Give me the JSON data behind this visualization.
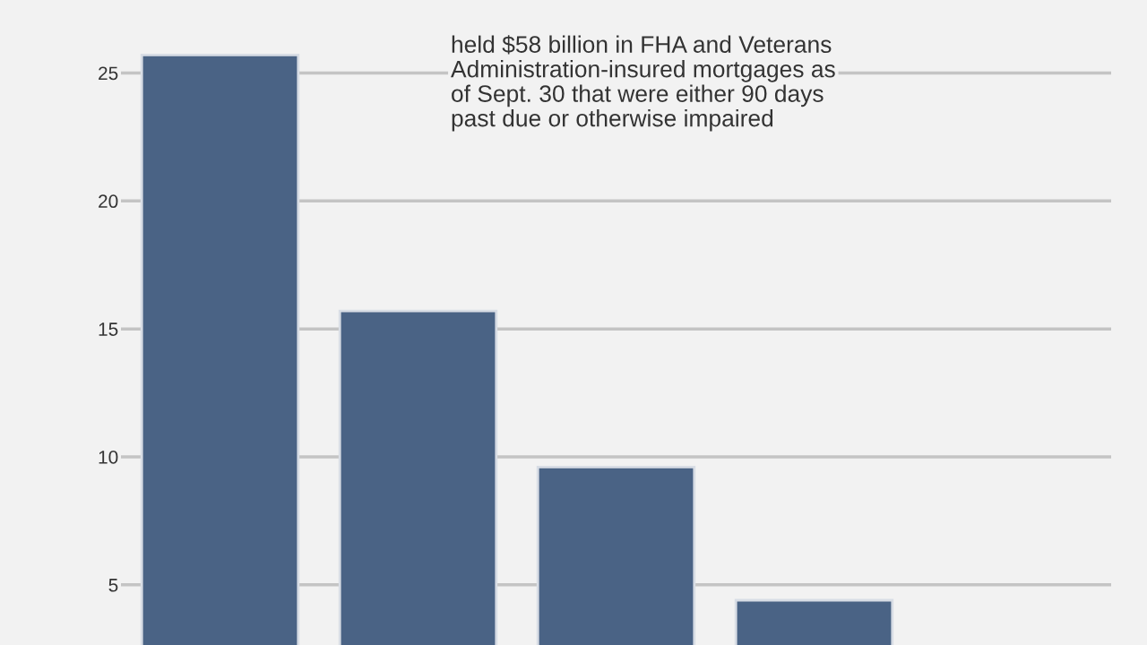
{
  "chart_data": {
    "type": "bar",
    "categories": [
      null,
      null,
      null,
      null,
      null
    ],
    "values": [
      25.7,
      15.7,
      9.6,
      4.4,
      null
    ],
    "color": "#4a6385",
    "ylim": [
      2.65,
      27.85
    ],
    "yticks": [
      5,
      10,
      15,
      20,
      25
    ],
    "grid": "y",
    "annotations": [
      "held $58 billion in FHA and Veterans\nAdministration-insured mortgages as\nof Sept. 30 that were either 90 days\npast due or otherwise impaired"
    ]
  }
}
